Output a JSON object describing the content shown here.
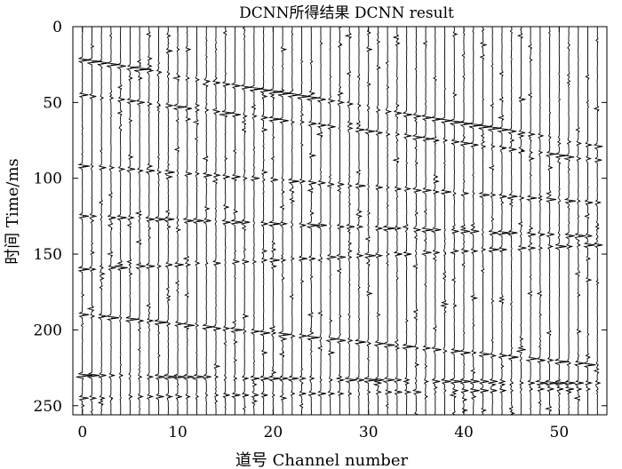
{
  "chart_data": {
    "type": "seismic-wiggle",
    "title": "DCNN所得结果 DCNN result",
    "xlabel": "道号 Channel number",
    "ylabel": "时间 Time/ms",
    "xlim": [
      -1,
      55
    ],
    "ylim": [
      0,
      256
    ],
    "y_inverted": true,
    "x_ticks": [
      0,
      10,
      20,
      30,
      40,
      50
    ],
    "y_ticks": [
      0,
      50,
      100,
      150,
      200,
      250
    ],
    "channels": 55,
    "samples": 256,
    "fill_positive": true,
    "events": [
      {
        "t0": 22,
        "slope": 1.05,
        "amp": 1.0
      },
      {
        "t0": 45,
        "slope": 0.8,
        "amp": 0.8
      },
      {
        "t0": 92,
        "slope": 0.45,
        "amp": 0.7
      },
      {
        "t0": 125,
        "slope": 0.25,
        "amp": 0.8
      },
      {
        "t0": 160,
        "slope": -0.3,
        "amp": 0.7
      },
      {
        "t0": 190,
        "slope": 0.62,
        "amp": 0.9
      },
      {
        "t0": 230,
        "slope": 0.1,
        "amp": 0.9
      },
      {
        "t0": 245,
        "slope": -0.12,
        "amp": 0.6
      }
    ]
  }
}
